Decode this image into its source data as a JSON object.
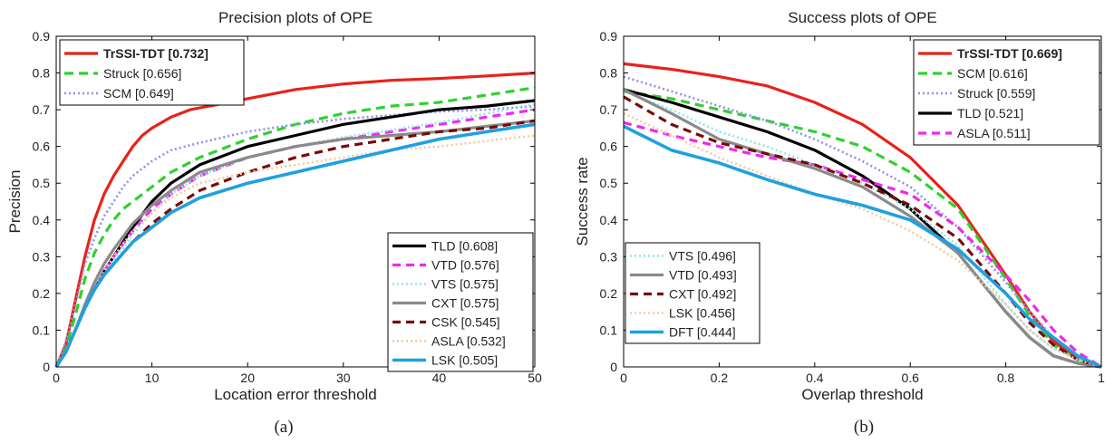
{
  "captions": [
    "(a)",
    "(b)"
  ],
  "chart_data": [
    {
      "type": "line",
      "title": "Precision plots of OPE",
      "xlabel": "Location error threshold",
      "ylabel": "Precision",
      "xlim": [
        0,
        50
      ],
      "ylim": [
        0,
        0.9
      ],
      "xticks": [
        0,
        10,
        20,
        30,
        40,
        50
      ],
      "yticks": [
        0,
        0.1,
        0.2,
        0.3,
        0.4,
        0.5,
        0.6,
        0.7,
        0.8,
        0.9
      ],
      "grid": false,
      "legends": [
        {
          "placement": "top-left",
          "entries": [
            "TrSSI-TDT [0.732]",
            "Struck [0.656]",
            "SCM [0.649]"
          ]
        },
        {
          "placement": "bottom-right",
          "entries": [
            "TLD [0.608]",
            "VTD [0.576]",
            "VTS [0.575]",
            "CXT [0.575]",
            "CSK [0.545]",
            "ASLA [0.532]",
            "LSK [0.505]"
          ]
        }
      ],
      "series": [
        {
          "name": "TrSSI-TDT [0.732]",
          "color": "#e8221b",
          "dash": "solid",
          "width": 3.2,
          "bold": true,
          "x": [
            0,
            1,
            2,
            3,
            4,
            5,
            6,
            7,
            8,
            9,
            10,
            12,
            14,
            16,
            18,
            20,
            25,
            30,
            35,
            40,
            45,
            50
          ],
          "y": [
            0,
            0.06,
            0.18,
            0.3,
            0.4,
            0.47,
            0.52,
            0.56,
            0.6,
            0.63,
            0.65,
            0.68,
            0.7,
            0.71,
            0.72,
            0.73,
            0.755,
            0.77,
            0.78,
            0.785,
            0.792,
            0.8
          ]
        },
        {
          "name": "Struck [0.656]",
          "color": "#2fd12f",
          "dash": "10,6",
          "width": 3.2,
          "x": [
            0,
            1,
            2,
            3,
            4,
            5,
            6,
            7,
            8,
            10,
            12,
            15,
            20,
            25,
            30,
            35,
            40,
            45,
            50
          ],
          "y": [
            0,
            0.05,
            0.14,
            0.24,
            0.31,
            0.36,
            0.4,
            0.43,
            0.45,
            0.49,
            0.53,
            0.57,
            0.62,
            0.66,
            0.69,
            0.71,
            0.72,
            0.74,
            0.76
          ]
        },
        {
          "name": "SCM [0.649]",
          "color": "#8f8fe8",
          "dash": "2,3",
          "width": 2.6,
          "x": [
            0,
            1,
            2,
            3,
            4,
            5,
            6,
            7,
            8,
            10,
            12,
            15,
            20,
            25,
            30,
            35,
            40,
            45,
            50
          ],
          "y": [
            0,
            0.07,
            0.17,
            0.28,
            0.35,
            0.41,
            0.45,
            0.49,
            0.52,
            0.56,
            0.59,
            0.61,
            0.64,
            0.66,
            0.675,
            0.685,
            0.695,
            0.7,
            0.71
          ]
        },
        {
          "name": "TLD [0.608]",
          "color": "#000000",
          "dash": "solid",
          "width": 3.2,
          "x": [
            0,
            1,
            2,
            3,
            4,
            5,
            6,
            8,
            10,
            12,
            15,
            20,
            25,
            30,
            35,
            40,
            45,
            50
          ],
          "y": [
            0,
            0.04,
            0.1,
            0.16,
            0.21,
            0.26,
            0.3,
            0.38,
            0.45,
            0.5,
            0.55,
            0.6,
            0.63,
            0.66,
            0.68,
            0.7,
            0.71,
            0.725
          ]
        },
        {
          "name": "VTD [0.576]",
          "color": "#f028f0",
          "dash": "9,6",
          "width": 3.2,
          "x": [
            0,
            1,
            2,
            3,
            4,
            5,
            6,
            8,
            10,
            12,
            15,
            20,
            25,
            30,
            35,
            40,
            45,
            50
          ],
          "y": [
            0,
            0.04,
            0.1,
            0.16,
            0.21,
            0.26,
            0.3,
            0.37,
            0.43,
            0.47,
            0.52,
            0.57,
            0.6,
            0.62,
            0.64,
            0.66,
            0.68,
            0.7
          ]
        },
        {
          "name": "VTS [0.575]",
          "color": "#8ee8ec",
          "dash": "2,3",
          "width": 2.6,
          "x": [
            0,
            1,
            2,
            3,
            4,
            5,
            6,
            8,
            10,
            12,
            15,
            20,
            25,
            30,
            35,
            40,
            45,
            50
          ],
          "y": [
            0,
            0.04,
            0.1,
            0.16,
            0.21,
            0.25,
            0.29,
            0.36,
            0.42,
            0.47,
            0.52,
            0.57,
            0.6,
            0.625,
            0.645,
            0.665,
            0.69,
            0.715
          ]
        },
        {
          "name": "CXT [0.575]",
          "color": "#8a8a8a",
          "dash": "solid",
          "width": 3.2,
          "x": [
            0,
            1,
            2,
            3,
            4,
            5,
            6,
            8,
            10,
            12,
            15,
            20,
            25,
            30,
            35,
            40,
            45,
            50
          ],
          "y": [
            0,
            0.04,
            0.1,
            0.17,
            0.23,
            0.28,
            0.32,
            0.39,
            0.44,
            0.48,
            0.53,
            0.57,
            0.6,
            0.62,
            0.63,
            0.64,
            0.655,
            0.67
          ]
        },
        {
          "name": "CSK [0.545]",
          "color": "#7a0a0a",
          "dash": "9,6",
          "width": 3.2,
          "x": [
            0,
            1,
            2,
            3,
            4,
            5,
            6,
            8,
            10,
            12,
            15,
            20,
            25,
            30,
            35,
            40,
            45,
            50
          ],
          "y": [
            0,
            0.04,
            0.1,
            0.16,
            0.21,
            0.25,
            0.28,
            0.34,
            0.39,
            0.43,
            0.48,
            0.53,
            0.57,
            0.6,
            0.62,
            0.64,
            0.65,
            0.67
          ]
        },
        {
          "name": "ASLA [0.532]",
          "color": "#f5c9a2",
          "dash": "2,3",
          "width": 2.6,
          "x": [
            0,
            1,
            2,
            3,
            4,
            5,
            6,
            8,
            10,
            12,
            15,
            20,
            25,
            30,
            35,
            40,
            45,
            50
          ],
          "y": [
            0,
            0.04,
            0.1,
            0.16,
            0.21,
            0.26,
            0.3,
            0.37,
            0.42,
            0.46,
            0.5,
            0.53,
            0.55,
            0.57,
            0.59,
            0.6,
            0.615,
            0.63
          ]
        },
        {
          "name": "LSK [0.505]",
          "color": "#1fa0e0",
          "dash": "solid",
          "width": 3.6,
          "x": [
            0,
            1,
            2,
            3,
            4,
            5,
            6,
            8,
            10,
            12,
            15,
            20,
            25,
            30,
            35,
            40,
            45,
            50
          ],
          "y": [
            0,
            0.04,
            0.1,
            0.16,
            0.21,
            0.25,
            0.28,
            0.34,
            0.38,
            0.42,
            0.46,
            0.5,
            0.53,
            0.56,
            0.59,
            0.62,
            0.64,
            0.66
          ]
        }
      ]
    },
    {
      "type": "line",
      "title": "Success plots of OPE",
      "xlabel": "Overlap threshold",
      "ylabel": "Success rate",
      "xlim": [
        0,
        1
      ],
      "ylim": [
        0,
        0.9
      ],
      "xticks": [
        0,
        0.2,
        0.4,
        0.6,
        0.8,
        1
      ],
      "yticks": [
        0,
        0.1,
        0.2,
        0.3,
        0.4,
        0.5,
        0.6,
        0.7,
        0.8,
        0.9
      ],
      "grid": false,
      "legends": [
        {
          "placement": "top-right",
          "entries": [
            "TrSSI-TDT [0.669]",
            "SCM [0.616]",
            "Struck [0.559]",
            "TLD [0.521]",
            "ASLA [0.511]"
          ]
        },
        {
          "placement": "bottom-left",
          "entries": [
            "VTS [0.496]",
            "VTD [0.493]",
            "CXT [0.492]",
            "LSK [0.456]",
            "DFT [0.444]"
          ]
        }
      ],
      "series": [
        {
          "name": "TrSSI-TDT [0.669]",
          "color": "#e8221b",
          "dash": "solid",
          "width": 3.2,
          "bold": true,
          "x": [
            0,
            0.1,
            0.2,
            0.3,
            0.4,
            0.5,
            0.6,
            0.7,
            0.8,
            0.85,
            0.9,
            0.95,
            1
          ],
          "y": [
            0.825,
            0.81,
            0.79,
            0.765,
            0.72,
            0.66,
            0.57,
            0.44,
            0.25,
            0.15,
            0.07,
            0.02,
            0
          ]
        },
        {
          "name": "SCM [0.616]",
          "color": "#2fd12f",
          "dash": "10,6",
          "width": 3.2,
          "x": [
            0,
            0.1,
            0.2,
            0.3,
            0.4,
            0.5,
            0.6,
            0.7,
            0.8,
            0.85,
            0.9,
            0.95,
            1
          ],
          "y": [
            0.75,
            0.73,
            0.7,
            0.67,
            0.64,
            0.6,
            0.53,
            0.43,
            0.24,
            0.14,
            0.06,
            0.02,
            0
          ]
        },
        {
          "name": "Struck [0.559]",
          "color": "#8f8fe8",
          "dash": "2,3",
          "width": 2.6,
          "x": [
            0,
            0.1,
            0.2,
            0.3,
            0.4,
            0.5,
            0.6,
            0.7,
            0.8,
            0.85,
            0.9,
            0.95,
            1
          ],
          "y": [
            0.79,
            0.75,
            0.71,
            0.67,
            0.62,
            0.56,
            0.49,
            0.38,
            0.23,
            0.15,
            0.08,
            0.03,
            0
          ]
        },
        {
          "name": "TLD [0.521]",
          "color": "#000000",
          "dash": "solid",
          "width": 3.2,
          "x": [
            0,
            0.1,
            0.2,
            0.3,
            0.4,
            0.5,
            0.6,
            0.7,
            0.8,
            0.85,
            0.9,
            0.95,
            1
          ],
          "y": [
            0.755,
            0.72,
            0.68,
            0.64,
            0.59,
            0.52,
            0.43,
            0.31,
            0.15,
            0.08,
            0.03,
            0.01,
            0
          ]
        },
        {
          "name": "ASLA [0.511]",
          "color": "#f028f0",
          "dash": "9,6",
          "width": 3.2,
          "x": [
            0,
            0.1,
            0.2,
            0.3,
            0.4,
            0.5,
            0.6,
            0.7,
            0.8,
            0.85,
            0.9,
            0.95,
            1
          ],
          "y": [
            0.665,
            0.63,
            0.6,
            0.57,
            0.55,
            0.51,
            0.47,
            0.38,
            0.25,
            0.18,
            0.1,
            0.04,
            0
          ]
        },
        {
          "name": "VTS [0.496]",
          "color": "#8ee8ec",
          "dash": "2,3",
          "width": 2.6,
          "x": [
            0,
            0.1,
            0.2,
            0.3,
            0.4,
            0.5,
            0.6,
            0.7,
            0.8,
            0.85,
            0.9,
            0.95,
            1
          ],
          "y": [
            0.75,
            0.7,
            0.64,
            0.6,
            0.55,
            0.5,
            0.43,
            0.33,
            0.17,
            0.1,
            0.05,
            0.02,
            0
          ]
        },
        {
          "name": "VTD [0.493]",
          "color": "#8a8a8a",
          "dash": "solid",
          "width": 3.2,
          "x": [
            0,
            0.1,
            0.2,
            0.3,
            0.4,
            0.5,
            0.6,
            0.7,
            0.8,
            0.85,
            0.9,
            0.95,
            1
          ],
          "y": [
            0.755,
            0.69,
            0.62,
            0.58,
            0.54,
            0.49,
            0.41,
            0.31,
            0.15,
            0.08,
            0.03,
            0.01,
            0
          ]
        },
        {
          "name": "CXT [0.492]",
          "color": "#7a0a0a",
          "dash": "9,6",
          "width": 3.2,
          "x": [
            0,
            0.1,
            0.2,
            0.3,
            0.4,
            0.5,
            0.6,
            0.7,
            0.8,
            0.85,
            0.9,
            0.95,
            1
          ],
          "y": [
            0.735,
            0.66,
            0.61,
            0.58,
            0.55,
            0.5,
            0.44,
            0.35,
            0.2,
            0.12,
            0.06,
            0.02,
            0
          ]
        },
        {
          "name": "LSK [0.456]",
          "color": "#f5c9a2",
          "dash": "2,3",
          "width": 2.6,
          "x": [
            0,
            0.1,
            0.2,
            0.3,
            0.4,
            0.5,
            0.6,
            0.7,
            0.8,
            0.85,
            0.9,
            0.95,
            1
          ],
          "y": [
            0.69,
            0.63,
            0.57,
            0.52,
            0.47,
            0.43,
            0.37,
            0.29,
            0.17,
            0.1,
            0.05,
            0.02,
            0
          ]
        },
        {
          "name": "DFT [0.444]",
          "color": "#1fa0e0",
          "dash": "solid",
          "width": 3.6,
          "x": [
            0,
            0.1,
            0.2,
            0.3,
            0.4,
            0.5,
            0.6,
            0.7,
            0.8,
            0.85,
            0.9,
            0.95,
            1
          ],
          "y": [
            0.655,
            0.59,
            0.555,
            0.51,
            0.47,
            0.44,
            0.4,
            0.32,
            0.2,
            0.13,
            0.08,
            0.03,
            0
          ]
        }
      ]
    }
  ]
}
